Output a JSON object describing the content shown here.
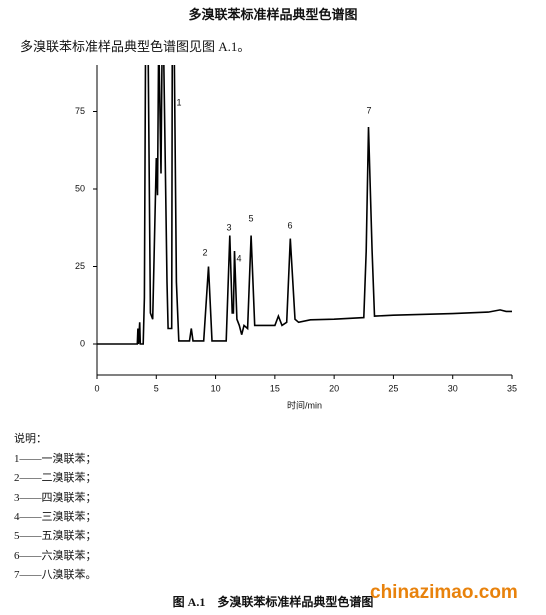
{
  "header": {
    "title": "多溴联苯标准样品典型色谱图"
  },
  "intro": "多溴联苯标准样品典型色谱图见图 A.1。",
  "chart_data": {
    "type": "line",
    "color": "#000000",
    "xlabel": "时间/min",
    "xlim": [
      0,
      35
    ],
    "ylim": [
      -10,
      90
    ],
    "xticks": [
      0,
      5,
      10,
      15,
      20,
      25,
      30,
      35
    ],
    "yticks": [
      0,
      25,
      50,
      75
    ],
    "x": [
      0,
      3.4,
      3.45,
      3.5,
      3.6,
      3.65,
      3.9,
      4.0,
      4.1,
      4.3,
      4.5,
      4.7,
      5.0,
      5.1,
      5.2,
      5.4,
      5.5,
      5.6,
      5.9,
      6.0,
      6.3,
      6.35,
      6.5,
      6.7,
      6.9,
      7.8,
      7.95,
      8.1,
      9.0,
      9.4,
      9.7,
      10.9,
      11.2,
      11.4,
      11.5,
      11.6,
      11.8,
      12.0,
      12.2,
      12.4,
      12.7,
      13.0,
      13.3,
      15.0,
      15.3,
      15.6,
      16.0,
      16.3,
      16.7,
      17.0,
      18,
      20,
      22.5,
      22.7,
      22.9,
      23.2,
      23.4,
      25,
      30,
      33,
      34,
      34.5,
      35
    ],
    "values": [
      0,
      0,
      5,
      0,
      7,
      0,
      0,
      15,
      100,
      100,
      10,
      8,
      60,
      48,
      100,
      55,
      100,
      100,
      20,
      5,
      5,
      100,
      100,
      20,
      1,
      1,
      5,
      1,
      1,
      25,
      1,
      1,
      35,
      10,
      10,
      30,
      8,
      6,
      3,
      6,
      5,
      35,
      6,
      6,
      9,
      6,
      7,
      34,
      8,
      7,
      7.8,
      8,
      8.5,
      30,
      70,
      30,
      9,
      9.3,
      9.8,
      10.3,
      11,
      10.5,
      10.5
    ],
    "annotations": [
      "1",
      "2",
      "3",
      "4",
      "5",
      "6",
      "7"
    ]
  },
  "notes": {
    "title": "说明：",
    "items": [
      "1——一溴联苯；",
      "2——二溴联苯；",
      "3——四溴联苯；",
      "4——三溴联苯；",
      "5——五溴联苯；",
      "6——六溴联苯；",
      "7——八溴联苯。"
    ]
  },
  "caption": "图 A.1　多溴联苯标准样品典型色谱图",
  "watermark": "chinazimao.com"
}
